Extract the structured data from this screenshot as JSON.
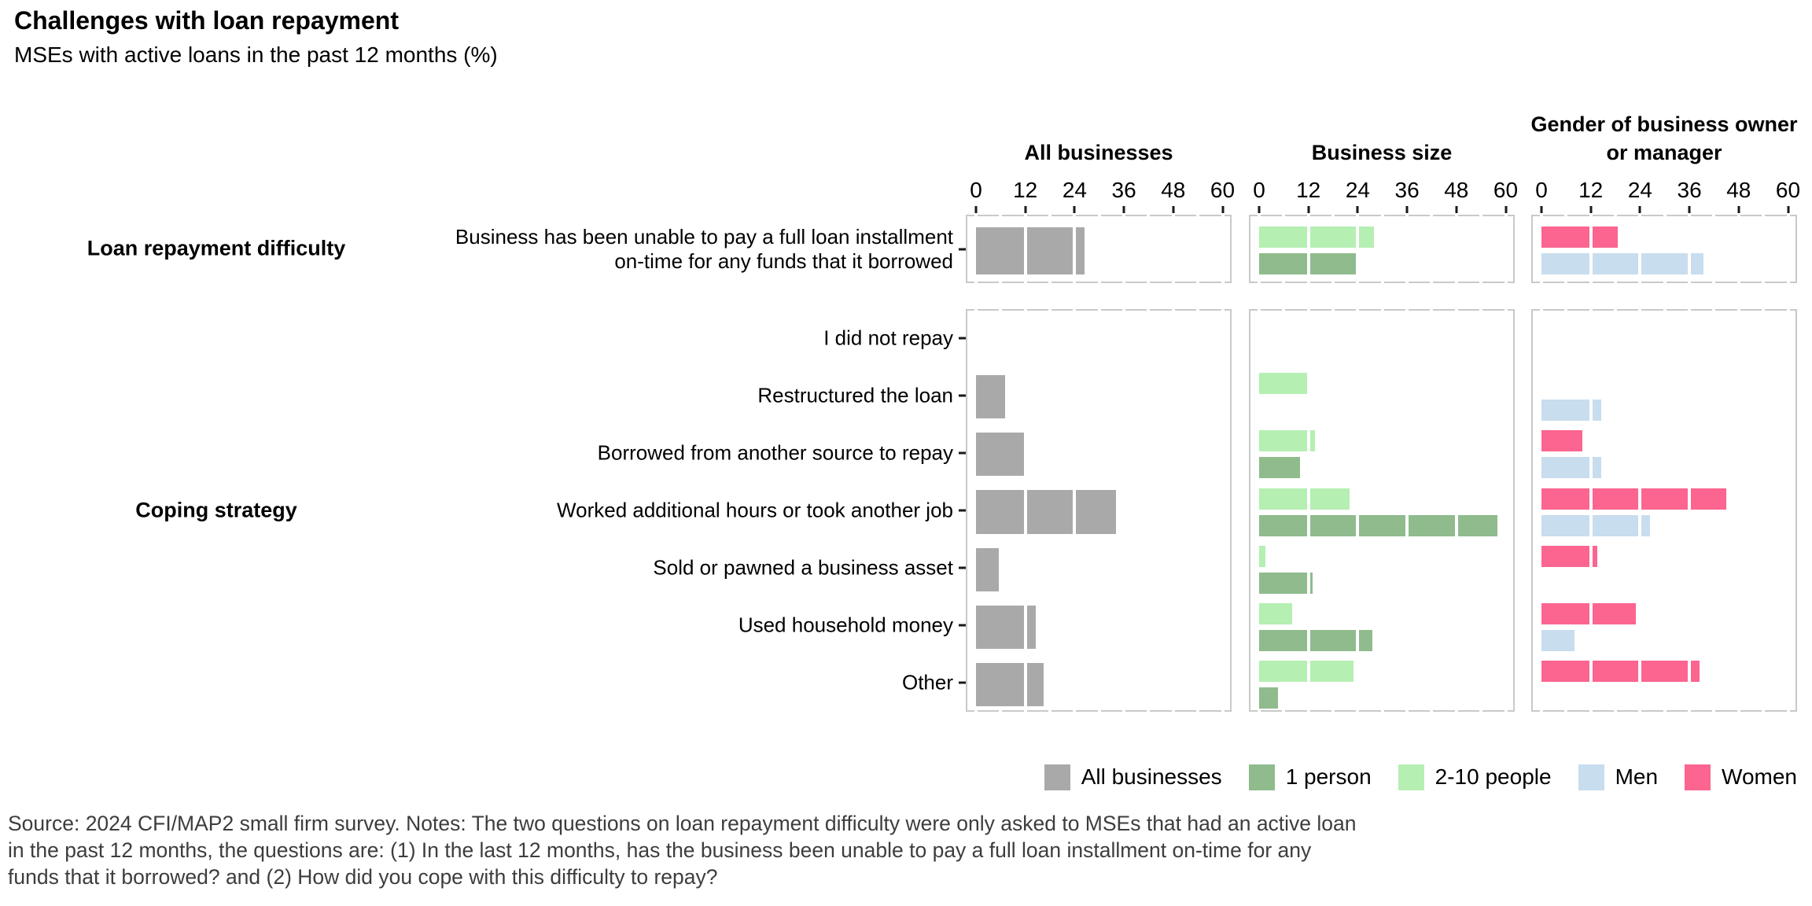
{
  "title": "Challenges with loan repayment",
  "subtitle": "MSEs with active loans in the past 12 months (%)",
  "footer": {
    "line1": "Source: 2024 CFI/MAP2 small firm survey. Notes: The two questions on loan repayment difficulty were only asked to MSEs that had an active loan",
    "line2": "in the past 12 months, the questions are: (1) In the last 12 months, has the business been unable to pay a full loan installment on-time for any",
    "line3": "funds that it borrowed? and (2) How did you cope with this difficulty to repay?"
  },
  "chart_data": {
    "type": "bar",
    "orientation": "horizontal",
    "unit": "%",
    "xlim": [
      0,
      60
    ],
    "xticks": [
      0,
      12,
      24,
      36,
      48,
      60
    ],
    "minor_tick_step": 6,
    "columns": [
      "All businesses",
      "Business size",
      "Gender of business owner or manager"
    ],
    "colors": {
      "All businesses": "#a9a9a9",
      "1 person": "#8fbb8d",
      "2-10 people": "#b5efb2",
      "Men": "#c8ddee",
      "Women": "#fb6590"
    },
    "legend": [
      "All businesses",
      "1 person",
      "2-10 people",
      "Men",
      "Women"
    ],
    "facets": [
      {
        "label": "Loan repayment difficulty",
        "categories": [
          "Business has been unable to pay a full loan installment  on-time for any funds that it borrowed"
        ],
        "category_lines": [
          [
            "Business has been unable to pay a full loan installment",
            "on-time for any funds that it borrowed"
          ]
        ],
        "panels": [
          {
            "column": "All businesses",
            "series": [
              {
                "name": "All businesses",
                "values": [
                  26.5
                ]
              }
            ]
          },
          {
            "column": "Business size",
            "series": [
              {
                "name": "2-10 people",
                "values": [
                  28
                ]
              },
              {
                "name": "1 person",
                "values": [
                  24
                ]
              }
            ]
          },
          {
            "column": "Gender of business owner or manager",
            "series": [
              {
                "name": "Women",
                "values": [
                  18.5
                ]
              },
              {
                "name": "Men",
                "values": [
                  39.5
                ]
              }
            ]
          }
        ]
      },
      {
        "label": "Coping strategy",
        "categories": [
          "I did not repay",
          "Restructured the loan",
          "Borrowed from another source to repay",
          "Worked additional hours or took another job",
          "Sold or pawned a business asset",
          "Used household money",
          "Other"
        ],
        "category_lines": [
          [
            "I did not repay"
          ],
          [
            "Restructured the loan"
          ],
          [
            "Borrowed from another source to repay"
          ],
          [
            "Worked additional hours or took another job"
          ],
          [
            "Sold or pawned a business asset"
          ],
          [
            "Used household money"
          ],
          [
            "Other"
          ]
        ],
        "panels": [
          {
            "column": "All businesses",
            "series": [
              {
                "name": "All businesses",
                "values": [
                  0,
                  7,
                  12,
                  34,
                  5.5,
                  14.5,
                  16.5
                ]
              }
            ]
          },
          {
            "column": "Business size",
            "series": [
              {
                "name": "2-10 people",
                "values": [
                  0,
                  12,
                  13.5,
                  22,
                  1.5,
                  8,
                  23
                ]
              },
              {
                "name": "1 person",
                "values": [
                  0,
                  0,
                  10,
                  58,
                  13,
                  27.5,
                  4.5
                ]
              }
            ]
          },
          {
            "column": "Gender of business owner or manager",
            "series": [
              {
                "name": "Women",
                "values": [
                  0,
                  0,
                  10,
                  45,
                  13.5,
                  23,
                  38.5
                ]
              },
              {
                "name": "Men",
                "values": [
                  0,
                  14.5,
                  14.5,
                  26.5,
                  0,
                  8,
                  0
                ]
              }
            ]
          }
        ]
      }
    ]
  }
}
